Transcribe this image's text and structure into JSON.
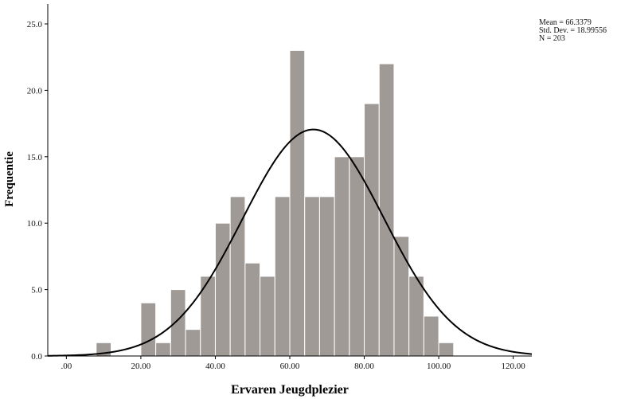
{
  "chart_data": {
    "type": "bar",
    "xlabel": "Ervaren Jeugdplezier",
    "ylabel": "Frequentie",
    "xlim": [
      -5,
      125
    ],
    "ylim": [
      0,
      26.5
    ],
    "x_ticks": [
      0,
      20,
      40,
      60,
      80,
      100,
      120
    ],
    "x_tick_labels": [
      ".00",
      "20.00",
      "40.00",
      "60.00",
      "80.00",
      "100.00",
      "120.00"
    ],
    "y_ticks": [
      0,
      5,
      10,
      15,
      20,
      25
    ],
    "y_tick_labels": [
      "0.0",
      "5.0",
      "10.0",
      "15.0",
      "20.0",
      "25.0"
    ],
    "bin_width": 4,
    "bins": [
      {
        "from": 8,
        "to": 12,
        "count": 1
      },
      {
        "from": 12,
        "to": 16,
        "count": 0
      },
      {
        "from": 16,
        "to": 20,
        "count": 0
      },
      {
        "from": 20,
        "to": 24,
        "count": 4
      },
      {
        "from": 24,
        "to": 28,
        "count": 1
      },
      {
        "from": 28,
        "to": 32,
        "count": 5
      },
      {
        "from": 32,
        "to": 36,
        "count": 2
      },
      {
        "from": 36,
        "to": 40,
        "count": 6
      },
      {
        "from": 40,
        "to": 44,
        "count": 10
      },
      {
        "from": 44,
        "to": 48,
        "count": 12
      },
      {
        "from": 48,
        "to": 52,
        "count": 7
      },
      {
        "from": 52,
        "to": 56,
        "count": 6
      },
      {
        "from": 56,
        "to": 60,
        "count": 12
      },
      {
        "from": 60,
        "to": 64,
        "count": 23
      },
      {
        "from": 64,
        "to": 68,
        "count": 12
      },
      {
        "from": 68,
        "to": 72,
        "count": 12
      },
      {
        "from": 72,
        "to": 76,
        "count": 15
      },
      {
        "from": 76,
        "to": 80,
        "count": 15
      },
      {
        "from": 80,
        "to": 84,
        "count": 19
      },
      {
        "from": 84,
        "to": 88,
        "count": 22
      },
      {
        "from": 88,
        "to": 92,
        "count": 9
      },
      {
        "from": 92,
        "to": 96,
        "count": 6
      },
      {
        "from": 96,
        "to": 100,
        "count": 3
      },
      {
        "from": 100,
        "to": 104,
        "count": 1
      }
    ],
    "normal_curve": {
      "mean": 66.3379,
      "sd": 18.99556,
      "n": 203
    },
    "stats_lines": [
      "Mean = 66.3379",
      "Std. Dev. = 18.99556",
      "N = 203"
    ],
    "bar_color": "#a09a97",
    "curve_color": "#000000",
    "grid": false,
    "legend": "none"
  }
}
